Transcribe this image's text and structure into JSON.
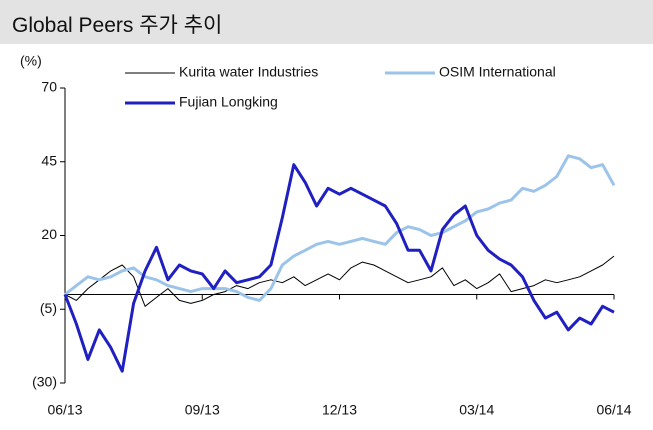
{
  "chart_data": {
    "type": "line",
    "title": "Global Peers 주가 추이",
    "y_unit_label": "(%)",
    "x": [
      0,
      0.25,
      0.5,
      0.75,
      1,
      1.25,
      1.5,
      1.75,
      2,
      2.25,
      2.5,
      2.75,
      3,
      3.25,
      3.5,
      3.75,
      4,
      4.25,
      4.5,
      4.75,
      5,
      5.25,
      5.5,
      5.75,
      6,
      6.25,
      6.5,
      6.75,
      7,
      7.25,
      7.5,
      7.75,
      8,
      8.25,
      8.5,
      8.75,
      9,
      9.25,
      9.5,
      9.75,
      10,
      10.25,
      10.5,
      10.75,
      11,
      11.25,
      11.5,
      11.75,
      12
    ],
    "xlim": [
      0,
      12
    ],
    "xticks": [
      {
        "value": 0,
        "label": "06/13"
      },
      {
        "value": 3,
        "label": "09/13"
      },
      {
        "value": 6,
        "label": "12/13"
      },
      {
        "value": 9,
        "label": "03/14"
      },
      {
        "value": 12,
        "label": "06/14"
      }
    ],
    "ylim": [
      -30,
      70
    ],
    "yticks": [
      {
        "value": -30,
        "label": "(30)"
      },
      {
        "value": -5,
        "label": "(5)"
      },
      20,
      45,
      70
    ],
    "series": [
      {
        "name": "Kurita water Industries",
        "color": "#000000",
        "width": 1,
        "values": [
          0,
          -2,
          2,
          5,
          8,
          10,
          6,
          -4,
          -1,
          2,
          -2,
          -3,
          -2,
          0,
          1,
          3,
          2,
          4,
          5,
          4,
          6,
          3,
          5,
          7,
          5,
          9,
          11,
          10,
          8,
          6,
          4,
          5,
          6,
          9,
          3,
          5,
          2,
          4,
          7,
          1,
          2,
          3,
          5,
          4,
          5,
          6,
          8,
          10,
          13
        ]
      },
      {
        "name": "OSIM International",
        "color": "#9cc3ea",
        "width": 3,
        "values": [
          0,
          3,
          6,
          5,
          6,
          8,
          9,
          6,
          5,
          3,
          2,
          1,
          2,
          2,
          2,
          1,
          -1,
          -2,
          2,
          10,
          13,
          15,
          17,
          18,
          17,
          18,
          19,
          18,
          17,
          21,
          23,
          22,
          20,
          21,
          23,
          25,
          28,
          29,
          31,
          32,
          36,
          35,
          37,
          40,
          47,
          46,
          43,
          44,
          37
        ]
      },
      {
        "name": "Fujian Longking",
        "color": "#1f1fc2",
        "width": 3,
        "values": [
          0,
          -10,
          -22,
          -12,
          -18,
          -26,
          -3,
          8,
          16,
          5,
          10,
          8,
          7,
          2,
          8,
          4,
          5,
          6,
          10,
          26,
          44,
          38,
          30,
          36,
          34,
          36,
          34,
          32,
          30,
          24,
          15,
          15,
          8,
          22,
          27,
          30,
          20,
          15,
          12,
          10,
          6,
          -2,
          -8,
          -6,
          -12,
          -8,
          -10,
          -4,
          -6
        ]
      }
    ]
  }
}
